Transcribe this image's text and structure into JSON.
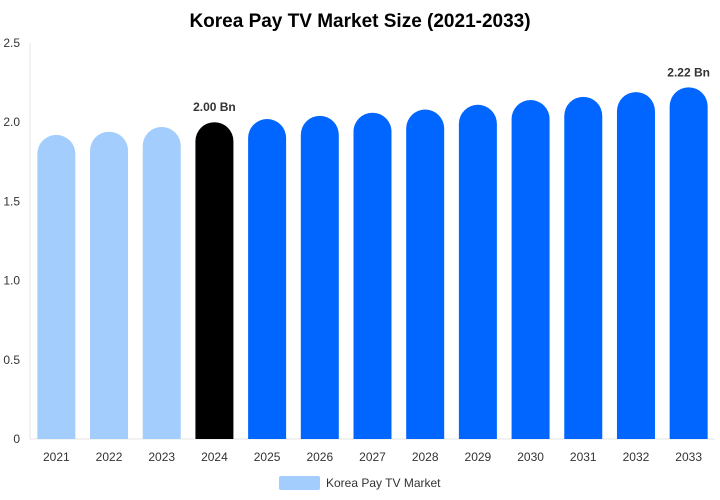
{
  "chart_data": {
    "type": "bar",
    "title": "Korea Pay TV Market Size (2021-2033)",
    "xlabel": "",
    "ylabel": "",
    "categories": [
      "2021",
      "2022",
      "2023",
      "2024",
      "2025",
      "2026",
      "2027",
      "2028",
      "2029",
      "2030",
      "2031",
      "2032",
      "2033"
    ],
    "series": [
      {
        "name": "Korea Pay TV Market",
        "values": [
          1.92,
          1.94,
          1.97,
          2.0,
          2.02,
          2.04,
          2.06,
          2.08,
          2.11,
          2.14,
          2.16,
          2.19,
          2.22
        ]
      }
    ],
    "ylim": [
      0,
      2.5
    ],
    "yticks": [
      "0",
      "0.5",
      "1.0",
      "1.5",
      "2.0",
      "2.5"
    ],
    "data_labels": [
      {
        "index": 3,
        "text": "2.00 Bn"
      },
      {
        "index": 12,
        "text": "2.22 Bn"
      }
    ],
    "bar_colors": [
      "#a3cdfd",
      "#a3cdfd",
      "#a3cdfd",
      "#000000",
      "#0066ff",
      "#0066ff",
      "#0066ff",
      "#0066ff",
      "#0066ff",
      "#0066ff",
      "#0066ff",
      "#0066ff",
      "#0066ff"
    ],
    "legend_color": "#a3cdfd",
    "legend_position": "bottom-center",
    "grid": false
  }
}
